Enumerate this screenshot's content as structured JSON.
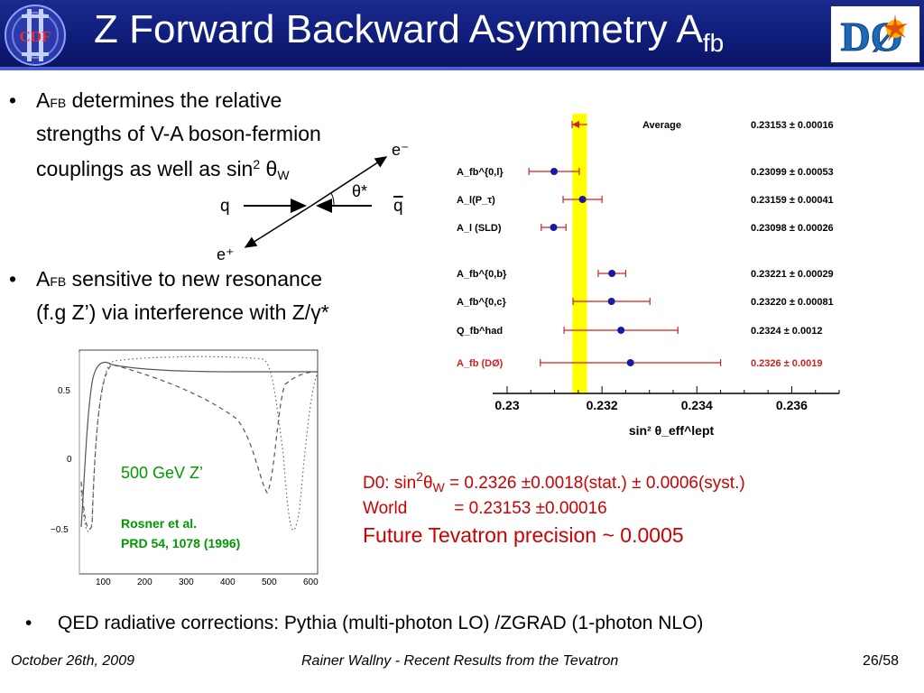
{
  "header": {
    "title": "Z Forward Backward Asymmetry A",
    "title_sub": "fb",
    "left_logo": "CDF",
    "right_logo": "DØ"
  },
  "bullets": [
    {
      "symbol": "•",
      "line1_a": "A",
      "line1_sub": "FB",
      "line1_b": " determines  the relative",
      "line2": "strengths of V-A boson-fermion",
      "line3_a": "couplings as well as sin",
      "line3_sup": "2",
      "line3_b": " θ",
      "line3_wsub": "W"
    },
    {
      "symbol": "•",
      "line1_a": "A",
      "line1_sub": "FB",
      "line1_b": " sensitive to new resonance",
      "line2": "(f.g Z’) via interference with Z/γ*"
    },
    {
      "symbol": "•",
      "text": "QED radiative corrections: Pythia (multi-photon LO) /ZGRAD (1-photon NLO)"
    }
  ],
  "diagram": {
    "q": "q",
    "qbar": "q",
    "e_minus": "e⁻",
    "e_plus": "e⁺",
    "theta": "θ*"
  },
  "zprime_plot": {
    "label": "500 GeV Z’",
    "ref_line1": "Rosner et al.",
    "ref_line2": " PRD 54, 1078 (1996)",
    "y_ticks": [
      "0.5",
      "0",
      "−0.5"
    ],
    "x_ticks": [
      "100",
      "200",
      "300",
      "400",
      "500",
      "600"
    ]
  },
  "chart_data": {
    "type": "scatter",
    "title": "",
    "xlabel": "sin² θ_eff^lept",
    "xlim": [
      0.23,
      0.237
    ],
    "x_ticks": [
      "0.23",
      "0.232",
      "0.234",
      "0.236"
    ],
    "band_center": 0.23153,
    "band_color": "#ffff00",
    "rows": [
      {
        "label": "Average",
        "value": 0.23153,
        "error": 0.00016,
        "text": "0.23153 ± 0.00016",
        "highlight": false,
        "average": true
      },
      {
        "label": "A_fb^{0,l}",
        "value": 0.23099,
        "error": 0.00053,
        "text": "0.23099 ± 0.00053",
        "highlight": false
      },
      {
        "label": "A_l(P_τ)",
        "value": 0.23159,
        "error": 0.00041,
        "text": "0.23159 ± 0.00041",
        "highlight": false
      },
      {
        "label": "A_l (SLD)",
        "value": 0.23098,
        "error": 0.00026,
        "text": "0.23098 ± 0.00026",
        "highlight": false
      },
      {
        "label": "A_fb^{0,b}",
        "value": 0.23221,
        "error": 0.00029,
        "text": "0.23221 ± 0.00029",
        "highlight": false
      },
      {
        "label": "A_fb^{0,c}",
        "value": 0.2322,
        "error": 0.00081,
        "text": "0.23220 ± 0.00081",
        "highlight": false
      },
      {
        "label": "Q_fb^had",
        "value": 0.2324,
        "error": 0.0012,
        "text": "0.2324 ± 0.0012",
        "highlight": false
      },
      {
        "label": "A_fb (DØ)",
        "value": 0.2326,
        "error": 0.0019,
        "text": "0.2326 ± 0.0019",
        "highlight": true
      }
    ],
    "colors": {
      "point": "#1a1aa0",
      "line": "#cc2222",
      "highlight": "#cc2222"
    }
  },
  "result": {
    "line1_a": "D0: sin",
    "line1_sup": "2",
    "line1_theta": "θ",
    "line1_sub": "W",
    "line1_b": " = 0.2326   ±0.0018(stat.) ± 0.0006(syst.)",
    "line2_a": "World",
    "line2_b": "= 0.23153 ±0.00016",
    "line3": "Future Tevatron precision ~ 0.0005"
  },
  "footer": {
    "date": "October 26th, 2009",
    "center": "Rainer Wallny - Recent Results from the Tevatron",
    "page": "26/58"
  }
}
